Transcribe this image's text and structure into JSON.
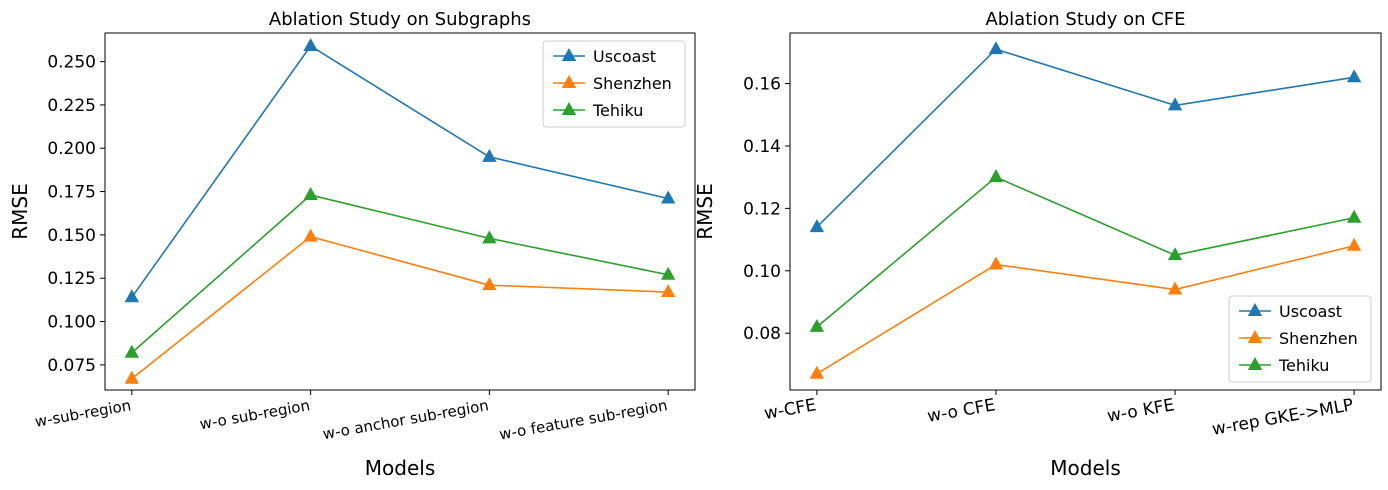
{
  "chart_data": [
    {
      "type": "line",
      "title": "Ablation Study on Subgraphs",
      "xlabel": "Models",
      "ylabel": "RMSE",
      "categories": [
        "w-sub-region",
        "w-o sub-region",
        "w-o anchor sub-region",
        "w-o feature sub-region"
      ],
      "ylim": [
        0.0605,
        0.2665
      ],
      "yticks": [
        0.075,
        0.1,
        0.125,
        0.15,
        0.175,
        0.2,
        0.225,
        0.25
      ],
      "ytick_labels": [
        "0.075",
        "0.100",
        "0.125",
        "0.150",
        "0.175",
        "0.200",
        "0.225",
        "0.250"
      ],
      "series": [
        {
          "name": "Uscoast",
          "color": "#1f77b4",
          "values": [
            0.114,
            0.259,
            0.195,
            0.171
          ]
        },
        {
          "name": "Shenzhen",
          "color": "#ff7f0e",
          "values": [
            0.067,
            0.149,
            0.121,
            0.117
          ]
        },
        {
          "name": "Tehiku",
          "color": "#2ca02c",
          "values": [
            0.082,
            0.173,
            0.148,
            0.127
          ]
        }
      ],
      "legend_position": "top-right",
      "grid": false,
      "marker": "triangle"
    },
    {
      "type": "line",
      "title": "Ablation Study on CFE",
      "xlabel": "Models",
      "ylabel": "RMSE",
      "categories": [
        "w-CFE",
        "w-o CFE",
        "w-o KFE",
        "w-rep GKE->MLP"
      ],
      "ylim": [
        0.0618,
        0.1762
      ],
      "yticks": [
        0.08,
        0.1,
        0.12,
        0.14,
        0.16
      ],
      "ytick_labels": [
        "0.08",
        "0.10",
        "0.12",
        "0.14",
        "0.16"
      ],
      "series": [
        {
          "name": "Uscoast",
          "color": "#1f77b4",
          "values": [
            0.114,
            0.171,
            0.153,
            0.162
          ]
        },
        {
          "name": "Shenzhen",
          "color": "#ff7f0e",
          "values": [
            0.067,
            0.102,
            0.094,
            0.108
          ]
        },
        {
          "name": "Tehiku",
          "color": "#2ca02c",
          "values": [
            0.082,
            0.13,
            0.105,
            0.117
          ]
        }
      ],
      "legend_position": "bottom-right",
      "grid": false,
      "marker": "triangle"
    }
  ]
}
